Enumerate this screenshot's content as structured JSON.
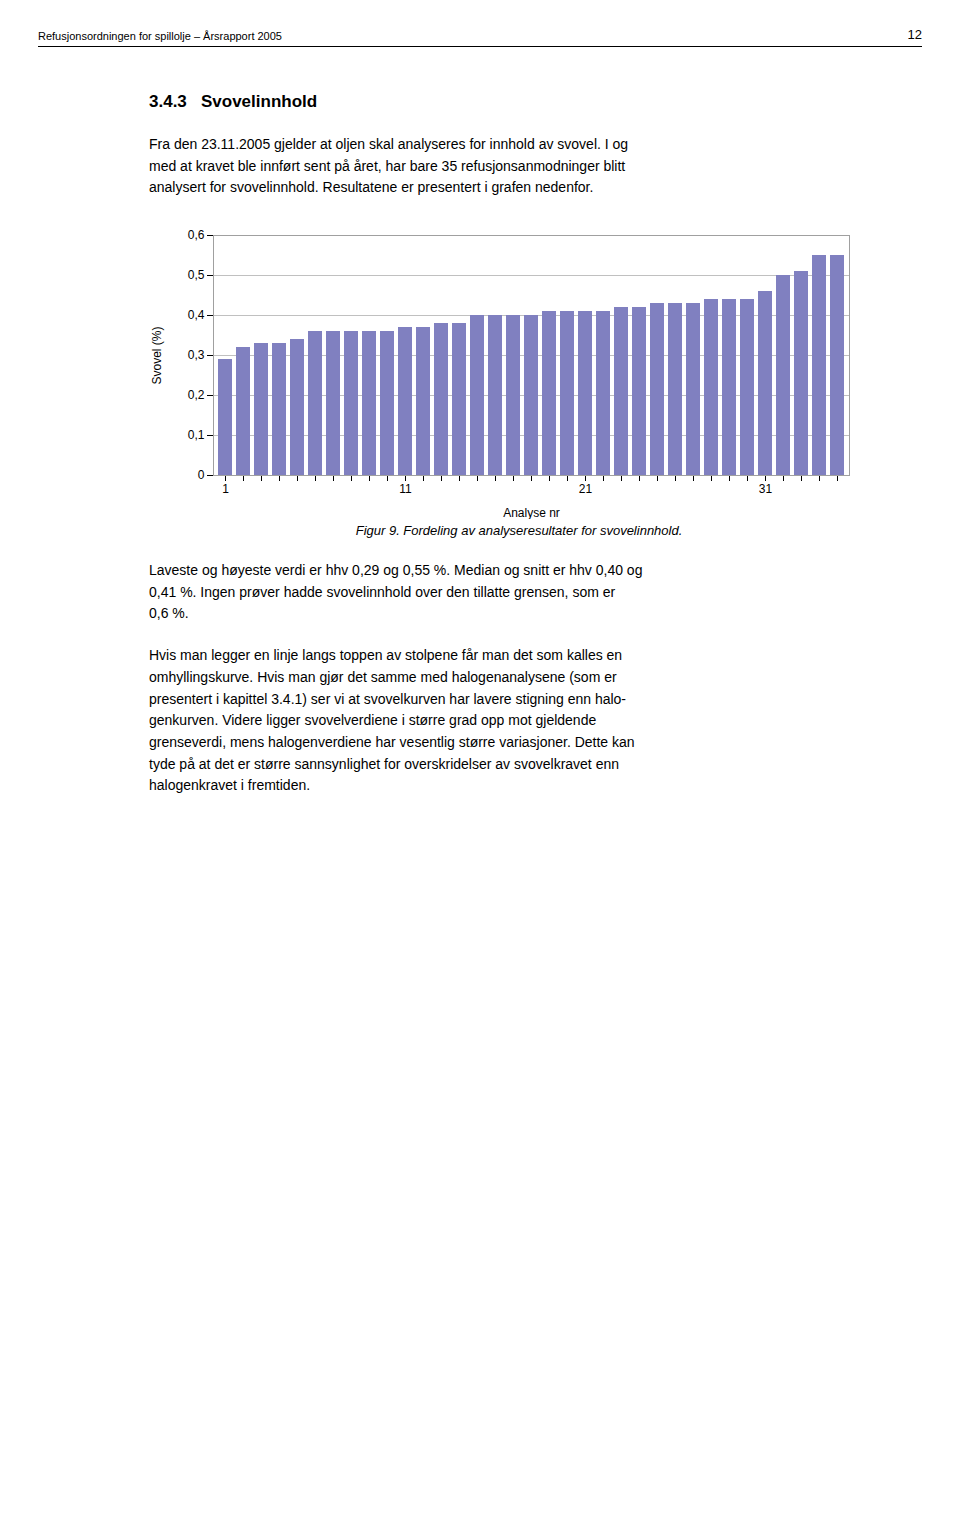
{
  "header_left": "Refusjonsordningen for spillolje – Årsrapport 2005",
  "header_right": "12",
  "section_title": "3.4.3   Svovelinnhold",
  "body_text1": "Fra den 23.11.2005 gjelder at oljen skal analyseres for innhold av svovel. I og\nmed at kravet ble innført sent på året, har bare 35 refusjonsanmodninger blitt\nanalysert for svovelinnhold. Resultatene er presentert i grafen nedenfor.",
  "body_text2": "Laveste og høyeste verdi er hhv 0,29 og 0,55 %. Median og snitt er hhv 0,40 og\n0,41 %. Ingen prøver hadde svovelinnhold over den tillatte grensen, som er\n0,6 %.",
  "body_text3": "Hvis man legger en linje langs toppen av stolpene får man det som kalles en\nomhyllingskurve. Hvis man gjør det samme med halogenanalysene (som er\npresentert i kapittel 3.4.1) ser vi at svovelkurven har lavere stigning enn halo-\ngenkurven. Videre ligger svovelverdiene i større grad opp mot gjeldende\ngrenseverdi, mens halogenverdiene har vesentlig større variasjoner. Dette kan\ntyde på at det er større sannsynlighet for overskridelser av svovelkravet enn\nhalogenkravet i fremtiden.",
  "chart_data": {
    "type": "bar",
    "caption": "Figur 9. Fordeling av analyseresultater for svovelinnhold.",
    "xlabel": "Analyse nr",
    "ylabel": "Svovel (%)",
    "categories": [
      "1",
      null,
      null,
      null,
      null,
      null,
      null,
      null,
      null,
      null,
      "11",
      null,
      null,
      null,
      null,
      null,
      null,
      null,
      null,
      null,
      "21",
      null,
      null,
      null,
      null,
      null,
      null,
      null,
      null,
      null,
      "31",
      null,
      null,
      null,
      null
    ],
    "values": [
      0.29,
      0.32,
      0.33,
      0.33,
      0.34,
      0.36,
      0.36,
      0.36,
      0.36,
      0.36,
      0.37,
      0.37,
      0.38,
      0.38,
      0.4,
      0.4,
      0.4,
      0.4,
      0.41,
      0.41,
      0.41,
      0.41,
      0.42,
      0.42,
      0.43,
      0.43,
      0.43,
      0.44,
      0.44,
      0.44,
      0.46,
      0.5,
      0.51,
      0.55,
      0.55
    ],
    "color": "#8080c0",
    "ylim": [
      0,
      0.6
    ],
    "yticks": [
      0,
      {
        "value": 0.1,
        "label": "0,1"
      },
      {
        "value": 0.2,
        "label": "0,2"
      },
      {
        "value": 0.3,
        "label": "0,3"
      },
      {
        "value": 0.4,
        "label": "0,4"
      },
      {
        "value": 0.5,
        "label": "0,5"
      },
      {
        "value": 0.6,
        "label": "0,6"
      }
    ],
    "grid": true
  }
}
